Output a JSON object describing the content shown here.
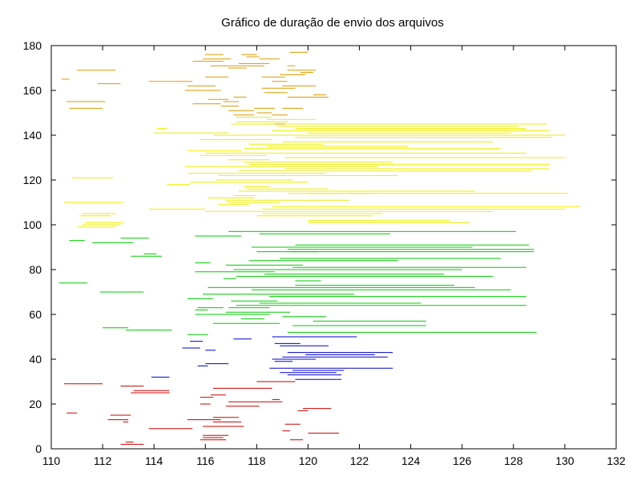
{
  "chart_data": {
    "type": "line",
    "title": "Gráfico de duração de envio dos arquivos",
    "xlabel": "",
    "ylabel": "",
    "xlim": [
      110,
      132
    ],
    "ylim": [
      0,
      180
    ],
    "xticks": [
      110,
      112,
      114,
      116,
      118,
      120,
      122,
      124,
      126,
      128,
      130,
      132
    ],
    "yticks": [
      0,
      20,
      40,
      60,
      80,
      100,
      120,
      140,
      160,
      180
    ],
    "grid": false,
    "legend": "none",
    "series": [
      {
        "color": "#cc0000",
        "segments": [
          [
            112.7,
            2,
            113.6
          ],
          [
            112.9,
            3,
            113.2
          ],
          [
            115.8,
            4,
            116.8
          ],
          [
            119.3,
            4,
            119.8
          ],
          [
            115.9,
            5,
            116.7
          ],
          [
            115.9,
            6,
            116.9
          ],
          [
            120.0,
            7,
            121.2
          ],
          [
            119.0,
            8,
            119.3
          ],
          [
            113.8,
            9,
            115.5
          ],
          [
            115.9,
            10,
            117.5
          ],
          [
            119.1,
            11,
            119.7
          ],
          [
            112.8,
            12,
            113.0
          ],
          [
            116.3,
            12,
            117.4
          ],
          [
            112.2,
            13,
            113.0
          ],
          [
            115.3,
            13,
            116.6
          ],
          [
            116.3,
            14,
            117.3
          ],
          [
            110.6,
            16,
            111.0
          ],
          [
            112.3,
            15,
            113.1
          ],
          [
            119.6,
            17,
            120.0
          ],
          [
            119.8,
            18,
            120.9
          ],
          [
            116.8,
            19,
            118.1
          ],
          [
            115.8,
            20,
            116.2
          ],
          [
            116.9,
            21,
            118.6
          ],
          [
            118.6,
            21,
            119.0
          ],
          [
            115.8,
            23,
            116.3
          ],
          [
            116.2,
            24,
            116.8
          ],
          [
            113.1,
            25,
            114.6
          ],
          [
            113.2,
            26,
            114.6
          ],
          [
            116.3,
            27,
            118.6
          ],
          [
            112.7,
            28,
            113.6
          ],
          [
            110.5,
            29,
            112.0
          ],
          [
            118.0,
            30,
            119.5
          ],
          [
            118.6,
            22,
            118.9
          ],
          [
            113.2,
            25,
            114.4
          ]
        ]
      },
      {
        "color": "#0000cc",
        "segments": [
          [
            113.9,
            32,
            114.6
          ],
          [
            119.2,
            33,
            121.3
          ],
          [
            118.9,
            34,
            121.1
          ],
          [
            119.4,
            35,
            121.4
          ],
          [
            118.5,
            36,
            123.3
          ],
          [
            115.7,
            37,
            116.1
          ],
          [
            116.0,
            38,
            116.9
          ],
          [
            118.7,
            39,
            119.4
          ],
          [
            118.6,
            40,
            120.3
          ],
          [
            119.0,
            41,
            123.1
          ],
          [
            119.9,
            42,
            122.6
          ],
          [
            119.2,
            43,
            123.3
          ],
          [
            115.1,
            45,
            115.8
          ],
          [
            116.0,
            44,
            116.4
          ],
          [
            118.9,
            46,
            120.8
          ],
          [
            115.4,
            48,
            115.9
          ],
          [
            118.7,
            47,
            119.7
          ],
          [
            117.1,
            49,
            117.8
          ],
          [
            118.6,
            50,
            121.9
          ],
          [
            119.5,
            31,
            121.3
          ]
        ]
      },
      {
        "color": "#00cc00",
        "segments": [
          [
            112.9,
            53,
            114.7
          ],
          [
            119.2,
            52,
            128.9
          ],
          [
            115.3,
            51,
            116.1
          ],
          [
            112.0,
            54,
            113.0
          ],
          [
            119.4,
            55,
            124.6
          ],
          [
            116.3,
            56,
            118.9
          ],
          [
            120.2,
            57,
            124.6
          ],
          [
            117.4,
            58,
            118.3
          ],
          [
            119.0,
            59,
            120.7
          ],
          [
            115.6,
            60,
            118.5
          ],
          [
            116.8,
            61,
            119.3
          ],
          [
            115.6,
            62,
            116.1
          ],
          [
            116.9,
            63,
            118.5
          ],
          [
            117.2,
            64,
            128.5
          ],
          [
            115.7,
            63,
            116.7
          ],
          [
            118.1,
            65,
            124.4
          ],
          [
            117.0,
            66,
            118.8
          ],
          [
            115.3,
            67,
            116.3
          ],
          [
            118.5,
            68,
            128.5
          ],
          [
            115.9,
            69,
            121.8
          ],
          [
            111.9,
            70,
            113.6
          ],
          [
            117.8,
            71,
            127.9
          ],
          [
            116.1,
            72,
            118.2
          ],
          [
            119.5,
            73,
            125.7
          ],
          [
            110.3,
            74,
            111.4
          ],
          [
            119.5,
            75,
            120.5
          ],
          [
            116.7,
            76,
            117.2
          ],
          [
            117.2,
            77,
            127.2
          ],
          [
            118.3,
            78,
            125.3
          ],
          [
            115.6,
            79,
            118.7
          ],
          [
            117.1,
            80,
            126.0
          ],
          [
            119.4,
            81,
            128.5
          ],
          [
            116.8,
            82,
            119.8
          ],
          [
            115.6,
            83,
            116.2
          ],
          [
            117.7,
            84,
            123.5
          ],
          [
            118.9,
            85,
            127.5
          ],
          [
            113.1,
            86,
            114.3
          ],
          [
            113.6,
            87,
            114.1
          ],
          [
            119.3,
            88,
            128.8
          ],
          [
            119.2,
            89,
            128.8
          ],
          [
            117.8,
            90,
            126.4
          ],
          [
            119.5,
            91,
            128.6
          ],
          [
            110.7,
            93,
            111.3
          ],
          [
            111.6,
            92,
            113.2
          ],
          [
            112.7,
            94,
            113.8
          ],
          [
            115.6,
            95,
            117.4
          ],
          [
            116.9,
            97,
            128.1
          ],
          [
            118.1,
            96,
            123.2
          ],
          [
            118.0,
            88,
            120.4
          ],
          [
            118.2,
            72,
            126.5
          ]
        ]
      },
      {
        "color": "#eeee00",
        "segments": [
          [
            111.0,
            99,
            112.5
          ],
          [
            111.2,
            100,
            112.7
          ],
          [
            111.3,
            101,
            112.8
          ],
          [
            120.0,
            101,
            126.3
          ],
          [
            120.0,
            102,
            125.5
          ],
          [
            111.1,
            104,
            112.3
          ],
          [
            111.2,
            105,
            112.5
          ],
          [
            118.0,
            104,
            122.5
          ],
          [
            118.2,
            105,
            122.9
          ],
          [
            113.8,
            107,
            116.0
          ],
          [
            116.0,
            106,
            127.2
          ],
          [
            118.2,
            107,
            130.0
          ],
          [
            118.6,
            108,
            130.6
          ],
          [
            110.5,
            110,
            112.8
          ],
          [
            116.5,
            109,
            117.7
          ],
          [
            116.9,
            110,
            118.9
          ],
          [
            116.8,
            111,
            121.6
          ],
          [
            116.1,
            112,
            117.9
          ],
          [
            117.1,
            113,
            118.0
          ],
          [
            120.0,
            114,
            130.1
          ],
          [
            117.3,
            115,
            126.5
          ],
          [
            119.2,
            114,
            122.5
          ],
          [
            117.6,
            116,
            120.8
          ],
          [
            117.5,
            117,
            118.5
          ],
          [
            114.5,
            118,
            115.4
          ],
          [
            115.4,
            119,
            120.0
          ],
          [
            116.4,
            120,
            119.4
          ],
          [
            110.8,
            121,
            112.4
          ],
          [
            116.5,
            122,
            123.5
          ],
          [
            115.3,
            123,
            120.7
          ],
          [
            117.3,
            124,
            128.7
          ],
          [
            119.1,
            125,
            129.4
          ],
          [
            115.2,
            126,
            122.7
          ],
          [
            117.7,
            127,
            129.4
          ],
          [
            117.5,
            128,
            123.3
          ],
          [
            116.9,
            129,
            118.5
          ],
          [
            119.1,
            130,
            130.0
          ],
          [
            115.8,
            131,
            118.4
          ],
          [
            116.0,
            132,
            128.5
          ],
          [
            115.3,
            133,
            117.4
          ],
          [
            117.5,
            134,
            127.5
          ],
          [
            118.4,
            135,
            123.9
          ],
          [
            117.7,
            136,
            120.6
          ],
          [
            119.0,
            137,
            127.2
          ],
          [
            115.8,
            138,
            118.6
          ],
          [
            119.5,
            139,
            129.5
          ],
          [
            116.3,
            140,
            130.0
          ],
          [
            114.0,
            141,
            116.9
          ],
          [
            114.1,
            143,
            114.5
          ],
          [
            118.8,
            144,
            128.2
          ],
          [
            118.2,
            145,
            126.5
          ],
          [
            117.2,
            146,
            119.2
          ],
          [
            118.4,
            147,
            120.3
          ],
          [
            117.2,
            148,
            118.6
          ],
          [
            118.6,
            142,
            129.4
          ],
          [
            119.5,
            143,
            128.5
          ],
          [
            117.0,
            145,
            129.3
          ],
          [
            120.0,
            141,
            127.9
          ]
        ]
      },
      {
        "color": "#dd9900",
        "segments": [
          [
            110.6,
            155,
            112.1
          ],
          [
            110.7,
            152,
            112.0
          ],
          [
            110.4,
            165,
            110.7
          ],
          [
            111.0,
            169,
            112.5
          ],
          [
            111.8,
            163,
            112.7
          ],
          [
            113.8,
            164,
            115.5
          ],
          [
            115.3,
            162,
            116.4
          ],
          [
            115.2,
            160,
            116.6
          ],
          [
            116.0,
            166,
            116.9
          ],
          [
            115.5,
            173,
            116.7
          ],
          [
            115.9,
            174,
            117.0
          ],
          [
            116.0,
            176,
            116.7
          ],
          [
            116.2,
            171,
            118.3
          ],
          [
            117.3,
            172,
            118.5
          ],
          [
            117.6,
            175,
            118.1
          ],
          [
            117.4,
            176,
            118.0
          ],
          [
            118.1,
            174,
            118.9
          ],
          [
            118.2,
            161,
            119.5
          ],
          [
            119.0,
            162,
            120.3
          ],
          [
            118.3,
            159,
            119.2
          ],
          [
            119.2,
            157,
            120.8
          ],
          [
            120.2,
            158,
            120.7
          ],
          [
            116.1,
            156,
            116.9
          ],
          [
            115.5,
            154,
            116.6
          ],
          [
            116.7,
            155,
            117.3
          ],
          [
            116.6,
            153,
            117.3
          ],
          [
            117.1,
            157,
            117.6
          ],
          [
            116.9,
            151,
            117.9
          ],
          [
            117.1,
            149,
            117.9
          ],
          [
            118.0,
            150,
            118.6
          ],
          [
            117.9,
            152,
            118.7
          ],
          [
            118.6,
            149,
            119.2
          ],
          [
            119.0,
            152,
            119.8
          ],
          [
            118.6,
            164,
            119.2
          ],
          [
            119.7,
            168,
            120.2
          ],
          [
            119.2,
            169,
            120.3
          ],
          [
            119.2,
            171,
            119.5
          ],
          [
            118.9,
            167,
            119.9
          ],
          [
            119.3,
            177,
            120.0
          ],
          [
            118.2,
            166,
            119.1
          ],
          [
            118.7,
            145,
            119.1
          ],
          [
            116.9,
            170,
            117.6
          ]
        ]
      }
    ]
  }
}
